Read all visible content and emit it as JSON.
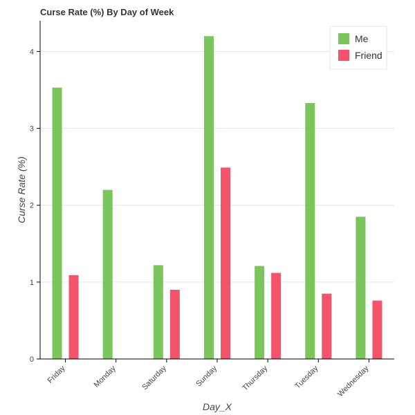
{
  "chart_data": {
    "type": "bar",
    "title": "Curse Rate (%) By Day of Week",
    "xlabel": "Day_X",
    "ylabel": "Curse Rate (%)",
    "categories": [
      "Friday",
      "Monday",
      "Saturday",
      "Sunday",
      "Thursday",
      "Tuesday",
      "Wednesday"
    ],
    "series": [
      {
        "name": "Me",
        "color": "#6cc04a",
        "values": [
          3.53,
          2.2,
          1.22,
          4.2,
          1.21,
          3.33,
          1.85
        ]
      },
      {
        "name": "Friend",
        "color": "#f2415a",
        "values": [
          1.09,
          0,
          0.9,
          2.49,
          1.12,
          0.85,
          0.76
        ]
      }
    ],
    "ylim": [
      0,
      4.4
    ],
    "yticks": [
      "0",
      "1",
      "2",
      "3",
      "4"
    ],
    "grid": true,
    "legend_position": "top-right"
  }
}
